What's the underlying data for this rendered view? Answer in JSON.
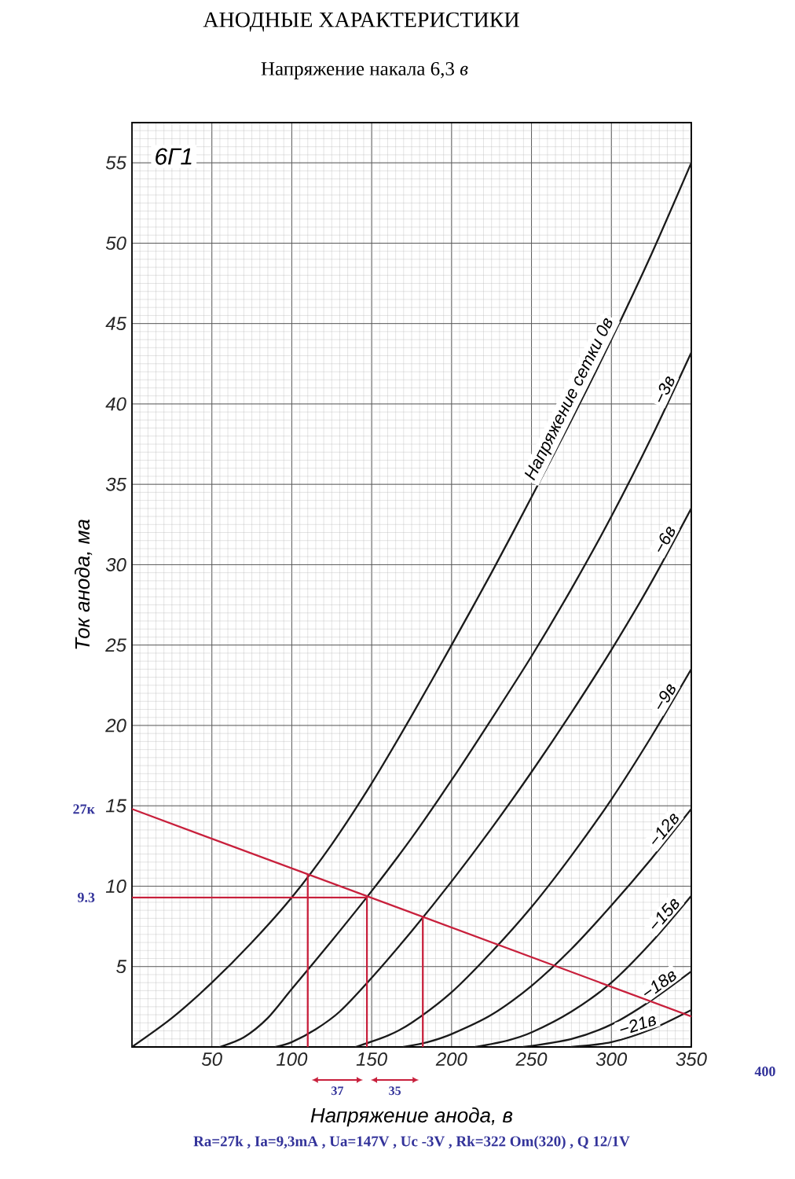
{
  "chart_data": {
    "type": "line",
    "title": "АНОДНЫЕ ХАРАКТЕРИСТИКИ",
    "subtitle": "Напряжение накала 6,3 *в*",
    "xlabel": "Напряжение анода, в",
    "ylabel": "Ток анода, ма",
    "xlim": [
      0,
      350
    ],
    "ylim": [
      0,
      57.5
    ],
    "xticks": [
      50,
      100,
      150,
      200,
      250,
      300,
      350
    ],
    "yticks": [
      5,
      10,
      15,
      20,
      25,
      30,
      35,
      40,
      45,
      50,
      55
    ],
    "grid": true,
    "series": [
      {
        "name": "Напряжение сетки 0в",
        "color": "#1a1a1a",
        "x": [
          0,
          25,
          50,
          75,
          100,
          125,
          150,
          175,
          200,
          225,
          250,
          275,
          300,
          325,
          350
        ],
        "values": [
          0,
          1.8,
          4.0,
          6.5,
          9.3,
          12.6,
          16.4,
          20.6,
          25.0,
          29.5,
          34.2,
          39.0,
          44.0,
          49.3,
          55.0
        ]
      },
      {
        "name": "−3в",
        "color": "#1a1a1a",
        "x": [
          55,
          70,
          85,
          100,
          125,
          150,
          175,
          200,
          225,
          250,
          275,
          300,
          325,
          350
        ],
        "values": [
          0,
          0.6,
          1.8,
          3.6,
          6.6,
          9.7,
          13.0,
          16.6,
          20.4,
          24.3,
          28.5,
          33.0,
          37.9,
          43.2
        ]
      },
      {
        "name": "−6в",
        "color": "#1a1a1a",
        "x": [
          90,
          100,
          115,
          130,
          150,
          175,
          200,
          225,
          250,
          275,
          300,
          325,
          350
        ],
        "values": [
          0,
          0.3,
          1.1,
          2.2,
          4.3,
          7.2,
          10.3,
          13.6,
          17.1,
          20.8,
          24.7,
          28.9,
          33.5
        ]
      },
      {
        "name": "−9в",
        "color": "#1a1a1a",
        "x": [
          140,
          160,
          175,
          200,
          225,
          250,
          275,
          300,
          325,
          350
        ],
        "values": [
          0,
          0.7,
          1.5,
          3.4,
          5.9,
          8.7,
          11.9,
          15.4,
          19.3,
          23.5
        ]
      },
      {
        "name": "−12в",
        "color": "#1a1a1a",
        "x": [
          170,
          185,
          200,
          225,
          250,
          275,
          300,
          325,
          350
        ],
        "values": [
          0,
          0.3,
          0.8,
          2.0,
          3.8,
          6.1,
          8.8,
          11.7,
          14.8
        ]
      },
      {
        "name": "−15в",
        "color": "#1a1a1a",
        "x": [
          215,
          235,
          250,
          275,
          300,
          325,
          350
        ],
        "values": [
          0,
          0.4,
          0.9,
          2.2,
          4.0,
          6.5,
          9.4
        ]
      },
      {
        "name": "−18в",
        "color": "#1a1a1a",
        "x": [
          245,
          275,
          300,
          325,
          350
        ],
        "values": [
          0,
          0.5,
          1.4,
          2.9,
          4.7
        ]
      },
      {
        "name": "−21в",
        "color": "#1a1a1a",
        "x": [
          275,
          300,
          325,
          350
        ],
        "values": [
          0,
          0.3,
          1.1,
          2.3
        ]
      },
      {
        "color": "#c8203c",
        "x": [
          0,
          350
        ],
        "values": [
          14.8,
          1.9
        ]
      },
      {
        "color": "#c8203c",
        "x": [
          0,
          147
        ],
        "values": [
          9.3,
          9.3
        ]
      },
      {
        "color": "#c8203c",
        "x": [
          110,
          110
        ],
        "values": [
          0,
          10.7
        ]
      },
      {
        "color": "#c8203c",
        "x": [
          147,
          147
        ],
        "values": [
          0,
          9.3
        ]
      },
      {
        "color": "#c8203c",
        "x": [
          182,
          182
        ],
        "values": [
          0,
          8.1
        ]
      }
    ],
    "annotations": [
      "6Г1",
      {
        "text": "27к",
        "x": 0,
        "y": 14.8
      },
      {
        "text": "9.3",
        "x": 0,
        "y": 9.3
      },
      "37",
      "35",
      "400",
      "Ra=27k , Ia=9,3mA , Ua=147V , Uc -3V , Rk=322 Om(320) , Q 12/1V"
    ]
  }
}
